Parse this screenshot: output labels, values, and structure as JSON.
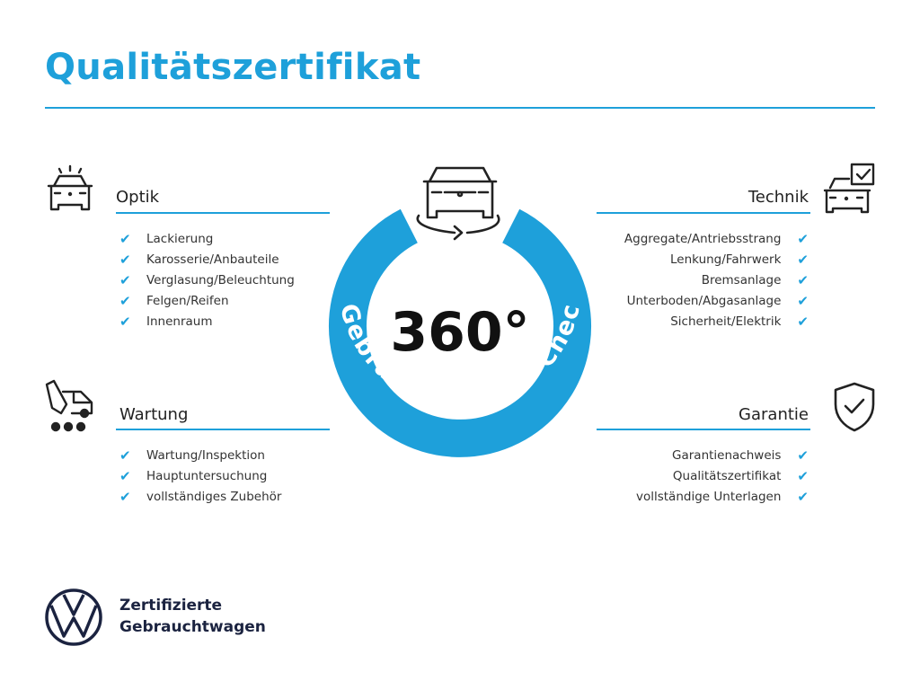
{
  "title": "Qualitätszertifikat",
  "colors": {
    "accent": "#1ea0da",
    "text": "#222222",
    "brand": "#1b2340"
  },
  "center": {
    "number": "360°",
    "ring_text": "Gebrauchtwagen-Check",
    "icon": "car-rotate-icon"
  },
  "sections": {
    "optik": {
      "title": "Optik",
      "icon": "car-lights-icon",
      "items": [
        "Lackierung",
        "Karosserie/Anbauteile",
        "Verglasung/Beleuchtung",
        "Felgen/Reifen",
        "Innenraum"
      ]
    },
    "wartung": {
      "title": "Wartung",
      "icon": "service-van-icon",
      "items": [
        "Wartung/Inspektion",
        "Hauptuntersuchung",
        "vollständiges Zubehör"
      ]
    },
    "technik": {
      "title": "Technik",
      "icon": "car-checkbox-icon",
      "items": [
        "Aggregate/Antriebsstrang",
        "Lenkung/Fahrwerk",
        "Bremsanlage",
        "Unterboden/Abgasanlage",
        "Sicherheit/Elektrik"
      ]
    },
    "garantie": {
      "title": "Garantie",
      "icon": "shield-check-icon",
      "items": [
        "Garantienachweis",
        "Qualitätszertifikat",
        "vollständige Unterlagen"
      ]
    }
  },
  "brand": {
    "line1": "Zertifizierte",
    "line2": "Gebrauchtwagen",
    "logo": "vw-logo",
    "logo_text": "VW"
  }
}
